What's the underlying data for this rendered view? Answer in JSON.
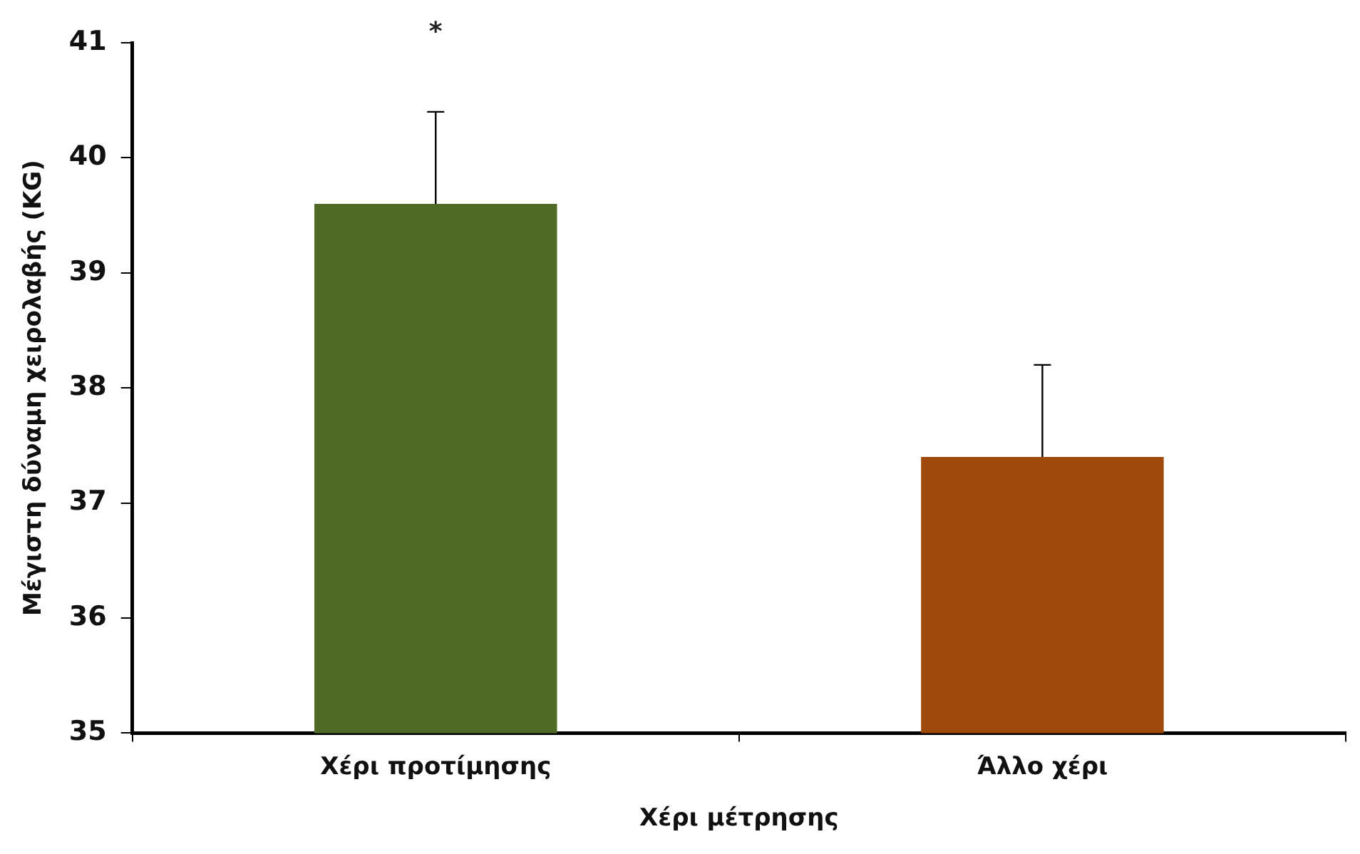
{
  "chart_data": {
    "type": "bar",
    "xlabel": "Χέρι μέτρησης",
    "ylabel": "Μέγιστη δύναμη χειρολαβής (KG)",
    "categories": [
      "Χέρι προτίμησης",
      "Άλλο χέρι"
    ],
    "values": [
      39.6,
      37.4
    ],
    "colors": [
      "#4e6a24",
      "#a0490c"
    ],
    "errors": [
      [
        39.6,
        40.4
      ],
      [
        37.4,
        38.2
      ]
    ],
    "ylim": [
      35,
      41
    ],
    "yticks": [
      35,
      36,
      37,
      38,
      39,
      40,
      41
    ],
    "grid": false,
    "legend": false,
    "annotations": [
      "*"
    ]
  }
}
